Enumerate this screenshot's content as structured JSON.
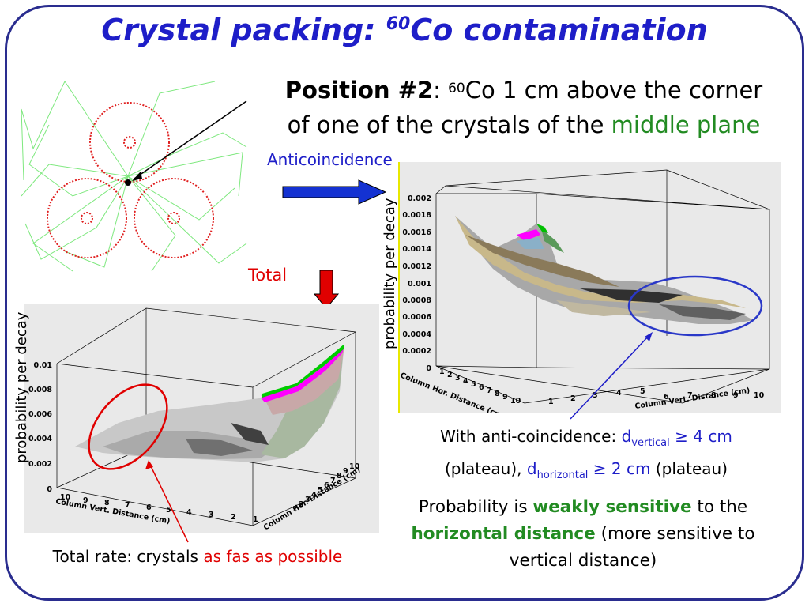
{
  "slide": {
    "title_prefix": "Crystal packing: ",
    "title_sup": "60",
    "title_suffix": "Co contamination",
    "position_label": "Position #2",
    "position_colon": ": ",
    "position_sup": "60",
    "position_text1": "Co 1 cm above the corner",
    "position_text2": "of one of the crystals of the ",
    "position_highlight": "middle plane",
    "anticoincidence_label": "Anticoincidence",
    "total_label": "Total",
    "caption_anti": {
      "part1": "With anti-coincidence: ",
      "d1": "d",
      "d1_sub": "vertical",
      "d1_val": " ≥ 4 cm",
      "part2": "(plateau), ",
      "d2": "d",
      "d2_sub": "horizontal",
      "d2_val": " ≥ 2 cm",
      "part3": " (plateau)"
    },
    "caption_prob": {
      "p1": "Probability is ",
      "p1_hl": "weakly sensitive",
      "p2": " to the ",
      "p2_hl": "horizontal distance",
      "p3": " (more sensitive to vertical distance)"
    },
    "caption_total": {
      "p1": "Total rate: crystals ",
      "p1_hl": "as fas as possible"
    }
  },
  "plot_anti": {
    "ylabel": "probability per decay",
    "xlabel": "Column Hor. Distance (cm)",
    "zlabel": "Column Vert. Distance (cm)",
    "yticks": [
      "0.002",
      "0.0018",
      "0.0016",
      "0.0014",
      "0.0012",
      "0.001",
      "0.0008",
      "0.0006",
      "0.0004",
      "0.0002",
      "0"
    ],
    "xticks": [
      "1",
      "2",
      "3",
      "4",
      "5",
      "6",
      "7",
      "8",
      "9",
      "10"
    ],
    "zticks": [
      "1",
      "2",
      "3",
      "4",
      "5",
      "6",
      "7",
      "8",
      "9",
      "10"
    ]
  },
  "plot_total": {
    "ylabel": "probability per decay",
    "xlabel": "Column Vert. Distance (cm)",
    "zlabel": "Column Hor. Distance (cm)",
    "yticks": [
      "0.01",
      "0.008",
      "0.006",
      "0.004",
      "0.002",
      "0"
    ],
    "xticks": [
      "10",
      "9",
      "8",
      "7",
      "6",
      "5",
      "4",
      "3",
      "2",
      "1"
    ],
    "zticks": [
      "1",
      "2",
      "3",
      "4",
      "5",
      "6",
      "7",
      "8",
      "9",
      "10"
    ]
  },
  "colors": {
    "title": "#1e1ec8",
    "frame": "#2a2d8f",
    "highlight_green": "#228b22",
    "highlight_red": "#e00000",
    "arrow_blue": "#1432d2",
    "arrow_red": "#e00000"
  }
}
